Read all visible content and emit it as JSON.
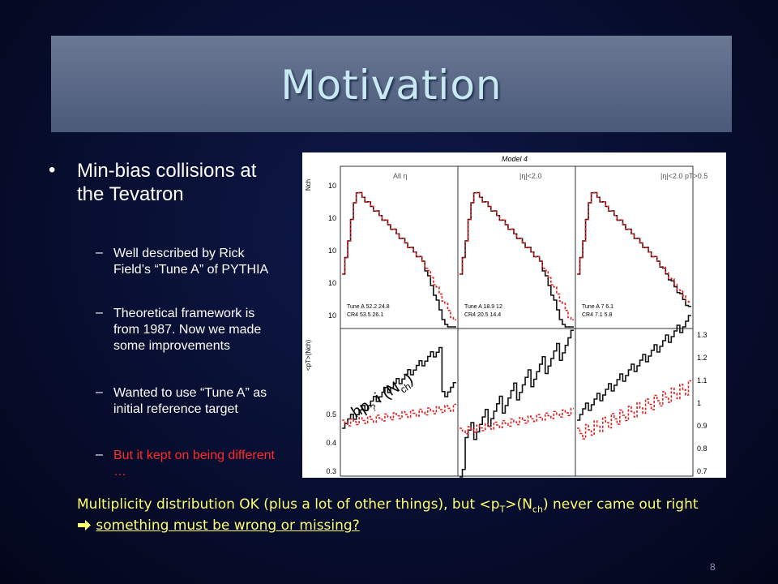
{
  "header": {
    "title": "Motivation"
  },
  "bullets": {
    "main": "Min-bias collisions at the Tevatron",
    "items": [
      {
        "text": "Well described by Rick Field’s “Tune A” of PYTHIA",
        "color": "#ffffff"
      },
      {
        "text": "Theoretical framework is from 1987. Now we made some improvements",
        "color": "#ffffff"
      },
      {
        "text": "Wanted to use “Tune A” as initial reference target",
        "color": "#ffffff"
      },
      {
        "text": "But it kept on being different …",
        "color": "#ff2a2a"
      }
    ],
    "dash": "–"
  },
  "figure": {
    "title": "Model 4",
    "y_label_top": "Nch",
    "y_label_bottom": "<pT>(Nch)",
    "panels": [
      "All η",
      "|η|<2.0",
      "|η|<2.0  pT>0.5"
    ],
    "left_ticks_top": [
      "10",
      "10",
      "10",
      "10",
      "10"
    ],
    "left_ticks_bottom": [
      "0.5",
      "0.4",
      "0.3"
    ],
    "right_ticks": [
      "1.3",
      "1.2",
      "1.1",
      "1",
      "0.9",
      "0.8",
      "0.7"
    ],
    "legend_rows": [
      [
        "Tune A 52.2 24.8",
        "CR4 53.5 26.1"
      ],
      [
        "Tune A 18.9 12",
        "CR4 20.5 14.4"
      ],
      [
        "Tune A 7 6.1",
        "CR4 7.1 5.8"
      ]
    ],
    "overlay": {
      "a": "hp",
      "b": "?",
      "c": " i (N",
      "d": "ch",
      "e": ")"
    }
  },
  "footer": {
    "part1": "Multiplicity distribution OK (plus a lot of other things), but <p",
    "sub1": "T",
    "part2": ">(N",
    "sub2": "ch",
    "part3": ") never came out right",
    "emphasis": "something must be wrong or missing?"
  },
  "page_number": "8"
}
